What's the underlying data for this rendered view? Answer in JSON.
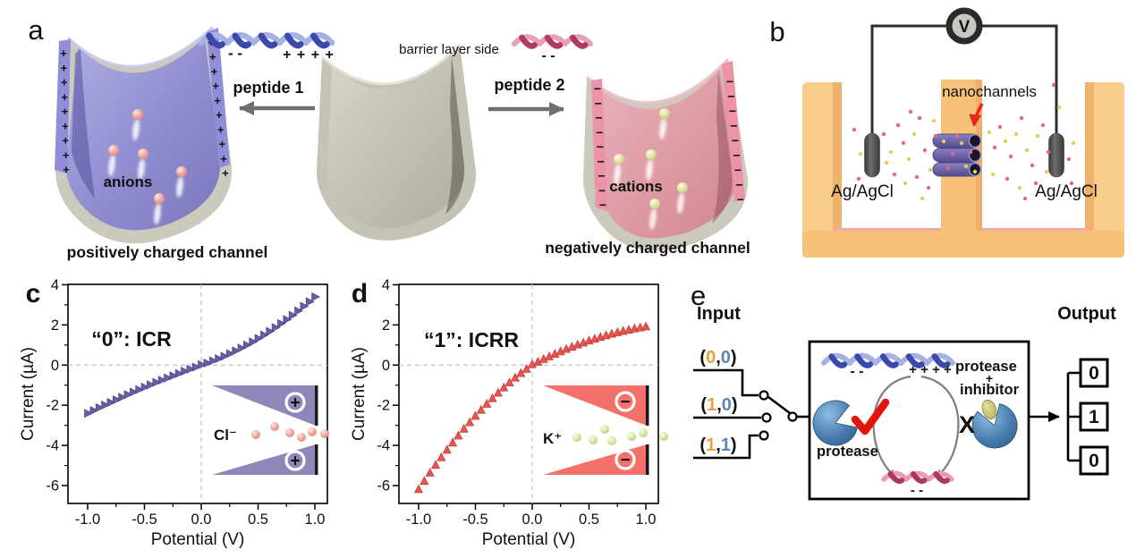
{
  "panel_labels": {
    "a": "a",
    "b": "b",
    "c": "c",
    "d": "d",
    "e": "e"
  },
  "panel_a": {
    "peptide1_label": "peptide 1",
    "peptide2_label": "peptide 2",
    "barrier_label": "barrier layer side",
    "helix1_neg_charges": "- -",
    "helix1_pos_charges": "+ + + +",
    "helix2_neg_charges": "- -",
    "anions_label": "anions",
    "cations_label": "cations",
    "caption_positive": "positively charged channel",
    "caption_negative": "negatively charged channel",
    "wall_plus_glyph": "+",
    "wall_minus_glyph": "−",
    "channel_positive_color": "#908ed8",
    "channel_negative_color": "#e7aab5"
  },
  "panel_b": {
    "voltmeter_label": "V",
    "nanochannels_label": "nanochannels",
    "electrode_left_label": "Ag/AgCl",
    "electrode_right_label": "Ag/AgCl",
    "cell_color": "#f8c178",
    "channel_tube_color": "#756bb2"
  },
  "chart_data": [
    {
      "panel": "c",
      "type": "scatter",
      "title_annotation": "“0”: ICR",
      "annotation_color": "#716aa8",
      "marker": "triangle-right",
      "marker_color": "#6a5da6",
      "marker_edge": "#534a86",
      "xlabel": "Potential (V)",
      "ylabel": "Current (µA)",
      "xlim": [
        -1.173,
        1.11
      ],
      "ylim": [
        -6.89,
        4.02
      ],
      "xticks": [
        -1.0,
        -0.5,
        0.0,
        0.5,
        1.0
      ],
      "xtick_labels": [
        "-1.0",
        "-0.5",
        "0.0",
        "0.5",
        "1.0"
      ],
      "yticks": [
        4,
        2,
        0,
        -2,
        -4,
        -6
      ],
      "ytick_labels": [
        "4",
        "2",
        "0",
        "-2",
        "-4",
        "-6"
      ],
      "x_minor": [
        -0.75,
        -0.25,
        0.25,
        0.75
      ],
      "y_minor": [
        3,
        1,
        -1,
        -3,
        -5
      ],
      "zero_gridlines": "dashed",
      "x_start": -1.0,
      "x_step": 0.05,
      "y_values": [
        -2.4,
        -2.26,
        -2.12,
        -1.99,
        -1.86,
        -1.73,
        -1.6,
        -1.47,
        -1.34,
        -1.22,
        -1.1,
        -0.98,
        -0.86,
        -0.75,
        -0.64,
        -0.53,
        -0.42,
        -0.31,
        -0.2,
        -0.1,
        0.02,
        0.1,
        0.21,
        0.32,
        0.44,
        0.57,
        0.71,
        0.85,
        1.0,
        1.16,
        1.33,
        1.5,
        1.68,
        1.87,
        2.07,
        2.27,
        2.48,
        2.7,
        2.93,
        3.16,
        3.4
      ],
      "inset": {
        "ion_label": "Cl⁻",
        "charge_glyph": "+",
        "wedge_color": "#8e88ba",
        "sphere_color": "pink"
      }
    },
    {
      "panel": "d",
      "type": "scatter",
      "title_annotation": "“1”: ICRR",
      "annotation_color": "#e2514c",
      "marker": "triangle-up",
      "marker_color": "#ea534e",
      "marker_edge": "#c43f3c",
      "xlabel": "Potential (V)",
      "ylabel": "Current (µA)",
      "xlim": [
        -1.173,
        1.11
      ],
      "ylim": [
        -6.89,
        4.02
      ],
      "xticks": [
        -1.0,
        -0.5,
        0.0,
        0.5,
        1.0
      ],
      "xtick_labels": [
        "-1.0",
        "-0.5",
        "0.0",
        "0.5",
        "1.0"
      ],
      "yticks": [
        4,
        2,
        0,
        -2,
        -4,
        -6
      ],
      "ytick_labels": [
        "4",
        "2",
        "0",
        "-2",
        "-4",
        "-6"
      ],
      "x_minor": [
        -0.75,
        -0.25,
        0.25,
        0.75
      ],
      "y_minor": [
        3,
        1,
        -1,
        -3,
        -5
      ],
      "zero_gridlines": "dashed",
      "x_start": -1.0,
      "x_step": 0.05,
      "y_values": [
        -6.2,
        -5.79,
        -5.38,
        -4.99,
        -4.61,
        -4.24,
        -3.88,
        -3.53,
        -3.19,
        -2.87,
        -2.55,
        -2.25,
        -1.95,
        -1.67,
        -1.4,
        -1.14,
        -0.89,
        -0.65,
        -0.42,
        -0.21,
        0.02,
        0.14,
        0.28,
        0.41,
        0.54,
        0.66,
        0.78,
        0.89,
        1.0,
        1.1,
        1.2,
        1.29,
        1.38,
        1.46,
        1.54,
        1.61,
        1.68,
        1.74,
        1.8,
        1.85,
        1.9
      ],
      "inset": {
        "ion_label": "K⁺",
        "charge_glyph": "−",
        "wedge_color": "#f4716b",
        "sphere_color": "green"
      }
    }
  ],
  "panel_e": {
    "input_title": "Input",
    "output_title": "Output",
    "inputs": [
      {
        "open": "(",
        "first": "0",
        "comma": ",",
        "second": "0",
        "close": ")"
      },
      {
        "open": "(",
        "first": "1",
        "comma": ",",
        "second": "0",
        "close": ")"
      },
      {
        "open": "(",
        "first": "1",
        "comma": ",",
        "second": "1",
        "close": ")"
      }
    ],
    "first_digit_color": "#e6a23c",
    "second_digit_color": "#5b87b5",
    "outputs": [
      "0",
      "1",
      "0"
    ],
    "box": {
      "helix_neg": "- -",
      "helix_pos": "+ + + +",
      "protease_top": "protease",
      "plus": "+",
      "inhibitor": "inhibitor",
      "protease_left": "protease",
      "x_mark": "X",
      "product_neg": "- -"
    },
    "label_orange": "#eba33c",
    "label_blue": "#5b87b5",
    "mark_red": "#e8130c"
  }
}
